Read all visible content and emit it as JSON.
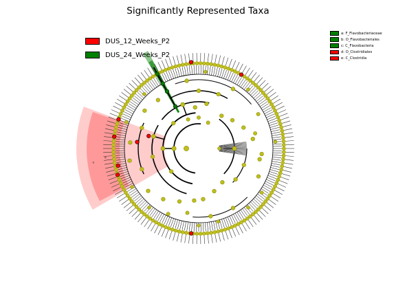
{
  "title": "Significantly Represented Taxa",
  "colors": {
    "group_12": "#ff0000",
    "group_24": "#008000",
    "node": "#bfbf1f",
    "node_edge": "#8a8a00",
    "branch": "#000000"
  },
  "groups": [
    {
      "label": "DUS_12_Weeks_P2",
      "color": "#ff0000"
    },
    {
      "label": "DUS_24_Weeks_P2",
      "color": "#008000"
    }
  ],
  "taxa_legend": [
    {
      "label": "a: F_Flavobacteriaceae",
      "color": "#008000"
    },
    {
      "label": "b: O_Flavobacteriales",
      "color": "#008000"
    },
    {
      "label": "c: C_Flavobacteria",
      "color": "#008000"
    },
    {
      "label": "d: O_Clostridiales",
      "color": "#ff0000"
    },
    {
      "label": "e: C_Clostridia",
      "color": "#ff0000"
    }
  ],
  "highlights": [
    {
      "taxon": "e",
      "group": "DUS_12_Weeks_P2"
    },
    {
      "taxon": "d",
      "group": "DUS_12_Weeks_P2"
    },
    {
      "taxon": "c",
      "group": "DUS_24_Weeks_P2"
    },
    {
      "taxon": "b",
      "group": "DUS_24_Weeks_P2"
    },
    {
      "taxon": "a",
      "group": "DUS_24_Weeks_P2"
    }
  ]
}
